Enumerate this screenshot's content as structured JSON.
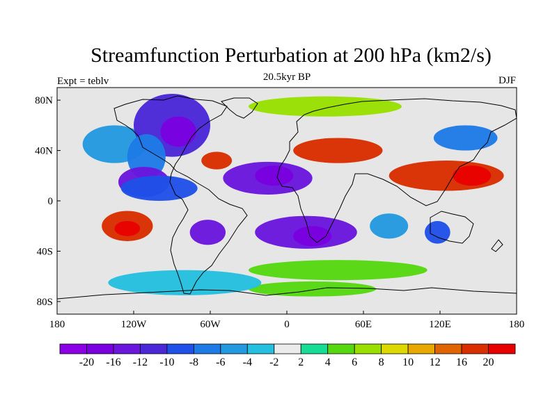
{
  "figure": {
    "title": "Streamfunction Perturbation at 200 hPa (km2/s)",
    "left_label": "Expt = teblv",
    "center_label": "20.5kyr BP",
    "right_label": "DJF"
  },
  "map": {
    "projection": "cylindrical-equidistant",
    "lon_range": [
      -180,
      180
    ],
    "lat_range": [
      -90,
      90
    ],
    "land_fill": "#e6e6e6",
    "coastline_color": "#000000",
    "x_ticks": [
      {
        "value": -180,
        "label": "180"
      },
      {
        "value": -120,
        "label": "120W"
      },
      {
        "value": -60,
        "label": "60W"
      },
      {
        "value": 0,
        "label": "0"
      },
      {
        "value": 60,
        "label": "60E"
      },
      {
        "value": 120,
        "label": "120E"
      },
      {
        "value": 180,
        "label": "180"
      }
    ],
    "y_ticks": [
      {
        "value": 80,
        "label": "80N"
      },
      {
        "value": 40,
        "label": "40N"
      },
      {
        "value": 0,
        "label": "0"
      },
      {
        "value": -40,
        "label": "40S"
      },
      {
        "value": -80,
        "label": "80S"
      }
    ],
    "features": [
      {
        "name": "north-pacific-trough",
        "lon": -135,
        "lat": 45,
        "rx": 25,
        "ry": 15,
        "level": -6
      },
      {
        "name": "canada-low",
        "lon": -90,
        "lat": 60,
        "rx": 30,
        "ry": 25,
        "level": -12
      },
      {
        "name": "canada-low-core",
        "lon": -85,
        "lat": 55,
        "rx": 14,
        "ry": 12,
        "level": -20
      },
      {
        "name": "na-west-trough",
        "lon": -110,
        "lat": 35,
        "rx": 15,
        "ry": 18,
        "level": -8
      },
      {
        "name": "mexico-low",
        "lon": -112,
        "lat": 15,
        "rx": 20,
        "ry": 12,
        "level": -16
      },
      {
        "name": "east-pacific-low",
        "lon": -100,
        "lat": 10,
        "rx": 30,
        "ry": 10,
        "level": -10
      },
      {
        "name": "atlantic-ridge",
        "lon": -55,
        "lat": 32,
        "rx": 12,
        "ry": 7,
        "level": 16
      },
      {
        "name": "tropical-atlantic-low",
        "lon": -15,
        "lat": 18,
        "rx": 35,
        "ry": 13,
        "level": -16
      },
      {
        "name": "tropical-atlantic-core",
        "lon": -10,
        "lat": 20,
        "rx": 15,
        "ry": 8,
        "level": -20
      },
      {
        "name": "south-america-low",
        "lon": -62,
        "lat": -25,
        "rx": 14,
        "ry": 10,
        "level": -16
      },
      {
        "name": "south-atlantic-low",
        "lon": 15,
        "lat": -25,
        "rx": 40,
        "ry": 13,
        "level": -16
      },
      {
        "name": "south-africa-core",
        "lon": 20,
        "lat": -28,
        "rx": 15,
        "ry": 8,
        "level": -20
      },
      {
        "name": "south-pacific-ridge",
        "lon": -125,
        "lat": -20,
        "rx": 20,
        "ry": 12,
        "level": 16
      },
      {
        "name": "south-pacific-core",
        "lon": -125,
        "lat": -22,
        "rx": 10,
        "ry": 6,
        "level": 20
      },
      {
        "name": "eurasian-ridge",
        "lon": 40,
        "lat": 40,
        "rx": 35,
        "ry": 10,
        "level": 16
      },
      {
        "name": "east-asia-ridge",
        "lon": 125,
        "lat": 20,
        "rx": 45,
        "ry": 12,
        "level": 16
      },
      {
        "name": "east-asia-core",
        "lon": 145,
        "lat": 20,
        "rx": 15,
        "ry": 8,
        "level": 20
      },
      {
        "name": "siberia-low",
        "lon": 140,
        "lat": 50,
        "rx": 25,
        "ry": 10,
        "level": -8
      },
      {
        "name": "australia-low",
        "lon": 118,
        "lat": -25,
        "rx": 10,
        "ry": 9,
        "level": -10
      },
      {
        "name": "southern-ocean-band",
        "lon": 40,
        "lat": -55,
        "rx": 70,
        "ry": 8,
        "level": 4
      },
      {
        "name": "antarctic-ridge",
        "lon": 20,
        "lat": -70,
        "rx": 50,
        "ry": 6,
        "level": 4
      },
      {
        "name": "arctic-ridge",
        "lon": 30,
        "lat": 75,
        "rx": 60,
        "ry": 8,
        "level": 6
      },
      {
        "name": "southern-atlantic-low",
        "lon": -80,
        "lat": -65,
        "rx": 60,
        "ry": 10,
        "level": -4
      },
      {
        "name": "indian-ocean-low",
        "lon": 80,
        "lat": -20,
        "rx": 15,
        "ry": 10,
        "level": -6
      }
    ]
  },
  "colorbar": {
    "labels": [
      "-20",
      "-16",
      "-12",
      "-10",
      "-8",
      "-6",
      "-4",
      "-2",
      "2",
      "4",
      "6",
      "8",
      "10",
      "12",
      "16",
      "20"
    ],
    "colors": [
      "#8C00E6",
      "#7A00E0",
      "#6A16DD",
      "#4A28D8",
      "#1F50E8",
      "#1E7BE6",
      "#2399E0",
      "#25C0E0",
      "#EBEBEB",
      "#17DC95",
      "#55D810",
      "#99E000",
      "#DCD800",
      "#E8A800",
      "#E06400",
      "#D92E00",
      "#E80000"
    ]
  },
  "chart_data": {
    "type": "map",
    "title": "Streamfunction Perturbation at 200 hPa (km2/s)",
    "variable": "streamfunction perturbation at 200 hPa",
    "units": "km2/s",
    "experiment": "teblv",
    "time": "20.5kyr BP",
    "season": "DJF",
    "contour_levels": [
      -20,
      -16,
      -12,
      -10,
      -8,
      -6,
      -4,
      -2,
      2,
      4,
      6,
      8,
      10,
      12,
      16,
      20
    ],
    "xlim": [
      -180,
      180
    ],
    "ylim": [
      -90,
      90
    ]
  }
}
